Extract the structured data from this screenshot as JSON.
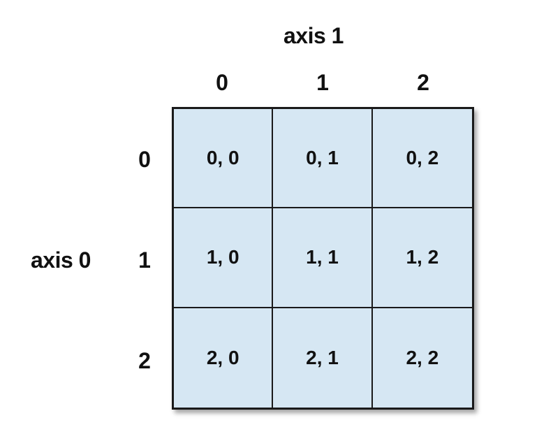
{
  "axis1_label": "axis 1",
  "axis0_label": "axis 0",
  "col_indices": [
    "0",
    "1",
    "2"
  ],
  "row_indices": [
    "0",
    "1",
    "2"
  ],
  "cells": [
    [
      "0, 0",
      "0, 1",
      "0, 2"
    ],
    [
      "1, 0",
      "1, 1",
      "1, 2"
    ],
    [
      "2, 0",
      "2, 1",
      "2, 2"
    ]
  ],
  "colors": {
    "cell_fill": "#d6e7f3",
    "grid_line": "#1a1a1a"
  }
}
